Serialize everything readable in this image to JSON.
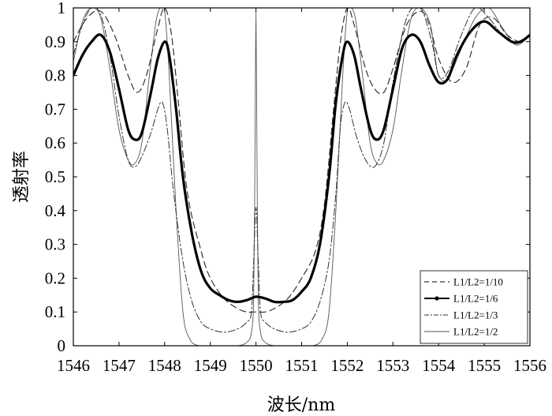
{
  "chart_data": {
    "type": "line",
    "title": "",
    "xlabel": "波长/nm",
    "ylabel": "透射率",
    "xlim": [
      1546,
      1556
    ],
    "ylim": [
      0,
      1
    ],
    "xticks": [
      "1546",
      "1547",
      "1548",
      "1549",
      "1550",
      "1551",
      "1552",
      "1553",
      "1554",
      "1555",
      "1556"
    ],
    "yticks": [
      "0",
      "0.1",
      "0.2",
      "0.3",
      "0.4",
      "0.5",
      "0.6",
      "0.7",
      "0.8",
      "0.9",
      "1"
    ],
    "grid": false,
    "legend_position": "bottom-right",
    "series": [
      {
        "name": "L1/L2=1/10",
        "style": "dashed",
        "color": "#333333",
        "x": [
          1546.0,
          1546.3,
          1546.6,
          1546.9,
          1547.2,
          1547.4,
          1547.6,
          1547.85,
          1548.0,
          1548.15,
          1548.3,
          1548.5,
          1548.8,
          1549.0,
          1549.3,
          1549.6,
          1549.8,
          1549.95,
          1550.0,
          1550.05,
          1550.2,
          1550.4,
          1550.7,
          1551.0,
          1551.3,
          1551.5,
          1551.7,
          1551.85,
          1552.0,
          1552.15,
          1552.4,
          1552.6,
          1552.8,
          1553.0,
          1553.3,
          1553.6,
          1553.8,
          1554.0,
          1554.3,
          1554.6,
          1554.9,
          1555.2,
          1555.5,
          1555.8,
          1556.0
        ],
        "y": [
          0.9,
          0.97,
          0.99,
          0.92,
          0.8,
          0.75,
          0.8,
          0.94,
          1.0,
          0.92,
          0.72,
          0.45,
          0.28,
          0.2,
          0.14,
          0.11,
          0.1,
          0.1,
          0.1,
          0.1,
          0.1,
          0.11,
          0.14,
          0.2,
          0.28,
          0.42,
          0.7,
          0.9,
          1.0,
          0.95,
          0.82,
          0.76,
          0.75,
          0.82,
          0.95,
          0.99,
          0.95,
          0.85,
          0.78,
          0.82,
          0.95,
          0.97,
          0.92,
          0.9,
          0.92
        ]
      },
      {
        "name": "L1/L2=1/6",
        "style": "bold-dotted",
        "color": "#000000",
        "x": [
          1546.0,
          1546.2,
          1546.4,
          1546.6,
          1546.8,
          1547.0,
          1547.2,
          1547.35,
          1547.5,
          1547.7,
          1547.85,
          1548.0,
          1548.1,
          1548.25,
          1548.4,
          1548.6,
          1548.8,
          1549.0,
          1549.2,
          1549.4,
          1549.6,
          1549.8,
          1550.0,
          1550.2,
          1550.4,
          1550.6,
          1550.8,
          1551.0,
          1551.2,
          1551.4,
          1551.6,
          1551.75,
          1551.9,
          1552.0,
          1552.15,
          1552.3,
          1552.5,
          1552.65,
          1552.8,
          1553.0,
          1553.2,
          1553.4,
          1553.6,
          1553.8,
          1554.0,
          1554.2,
          1554.4,
          1554.7,
          1555.0,
          1555.3,
          1555.6,
          1555.8,
          1556.0
        ],
        "y": [
          0.8,
          0.86,
          0.9,
          0.92,
          0.87,
          0.76,
          0.64,
          0.61,
          0.63,
          0.75,
          0.85,
          0.9,
          0.86,
          0.7,
          0.5,
          0.33,
          0.22,
          0.17,
          0.15,
          0.135,
          0.13,
          0.135,
          0.145,
          0.14,
          0.13,
          0.13,
          0.135,
          0.16,
          0.2,
          0.3,
          0.5,
          0.72,
          0.86,
          0.9,
          0.86,
          0.76,
          0.64,
          0.61,
          0.64,
          0.76,
          0.88,
          0.92,
          0.9,
          0.83,
          0.78,
          0.79,
          0.86,
          0.93,
          0.96,
          0.93,
          0.9,
          0.9,
          0.92
        ]
      },
      {
        "name": "L1/L2=1/3",
        "style": "dash-dot",
        "color": "#333333",
        "x": [
          1546.0,
          1546.2,
          1546.4,
          1546.6,
          1546.8,
          1547.0,
          1547.2,
          1547.35,
          1547.5,
          1547.7,
          1547.85,
          1547.95,
          1548.05,
          1548.2,
          1548.4,
          1548.6,
          1548.8,
          1549.0,
          1549.3,
          1549.6,
          1549.8,
          1549.9,
          1549.95,
          1550.0,
          1550.05,
          1550.1,
          1550.2,
          1550.4,
          1550.7,
          1551.0,
          1551.2,
          1551.4,
          1551.6,
          1551.75,
          1551.85,
          1551.95,
          1552.05,
          1552.2,
          1552.4,
          1552.6,
          1552.8,
          1553.0,
          1553.3,
          1553.6,
          1553.85,
          1554.0,
          1554.2,
          1554.5,
          1554.8,
          1555.1,
          1555.4,
          1555.7,
          1556.0
        ],
        "y": [
          0.86,
          0.95,
          1.0,
          0.98,
          0.86,
          0.68,
          0.55,
          0.53,
          0.56,
          0.63,
          0.7,
          0.72,
          0.65,
          0.45,
          0.25,
          0.13,
          0.07,
          0.05,
          0.04,
          0.05,
          0.07,
          0.1,
          0.25,
          0.41,
          0.25,
          0.1,
          0.07,
          0.05,
          0.04,
          0.05,
          0.07,
          0.13,
          0.25,
          0.45,
          0.65,
          0.72,
          0.7,
          0.62,
          0.55,
          0.53,
          0.6,
          0.78,
          0.97,
          1.0,
          0.9,
          0.8,
          0.81,
          0.92,
          1.0,
          0.97,
          0.92,
          0.9,
          0.92
        ]
      },
      {
        "name": "L1/L2=1/2",
        "style": "solid-thin",
        "color": "#555555",
        "x": [
          1546.0,
          1546.2,
          1546.4,
          1546.6,
          1546.8,
          1547.0,
          1547.2,
          1547.35,
          1547.5,
          1547.65,
          1547.8,
          1547.9,
          1548.0,
          1548.1,
          1548.25,
          1548.4,
          1548.55,
          1548.75,
          1549.0,
          1549.3,
          1549.6,
          1549.8,
          1549.9,
          1549.95,
          1549.98,
          1550.0,
          1550.02,
          1550.05,
          1550.1,
          1550.2,
          1550.4,
          1550.7,
          1551.0,
          1551.25,
          1551.45,
          1551.6,
          1551.75,
          1551.9,
          1552.0,
          1552.1,
          1552.2,
          1552.35,
          1552.5,
          1552.65,
          1552.8,
          1553.0,
          1553.2,
          1553.4,
          1553.6,
          1553.8,
          1553.9,
          1554.0,
          1554.2,
          1554.5,
          1554.8,
          1555.1,
          1555.4,
          1555.7,
          1556.0
        ],
        "y": [
          0.84,
          0.96,
          1.0,
          0.97,
          0.82,
          0.64,
          0.55,
          0.54,
          0.6,
          0.78,
          0.95,
          1.0,
          0.99,
          0.8,
          0.4,
          0.1,
          0.02,
          0.0,
          0.0,
          0.0,
          0.0,
          0.01,
          0.04,
          0.15,
          0.6,
          0.99,
          0.6,
          0.15,
          0.04,
          0.01,
          0.0,
          0.0,
          0.0,
          0.0,
          0.02,
          0.1,
          0.4,
          0.8,
          0.99,
          1.0,
          0.95,
          0.78,
          0.6,
          0.54,
          0.55,
          0.64,
          0.82,
          0.97,
          1.0,
          0.96,
          0.88,
          0.8,
          0.79,
          0.88,
          0.97,
          1.0,
          0.94,
          0.89,
          0.92
        ]
      }
    ]
  }
}
